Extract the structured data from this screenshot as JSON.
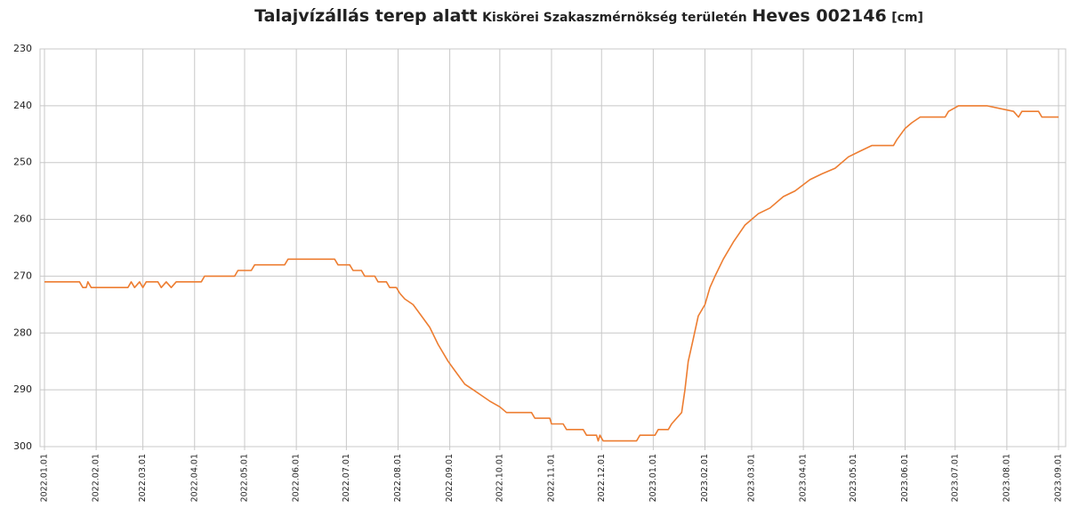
{
  "chart_data": {
    "type": "line",
    "title": [
      "Talajvízállás terep alatt",
      "Kiskörei Szakaszmérnökség területén",
      "Heves 002146",
      "[cm]"
    ],
    "x": [
      "2022.01.01",
      "2022.01.22",
      "2022.01.24",
      "2022.01.26",
      "2022.01.27",
      "2022.01.29",
      "2022.02.20",
      "2022.02.22",
      "2022.02.24",
      "2022.02.27",
      "2022.03.01",
      "2022.03.03",
      "2022.03.10",
      "2022.03.12",
      "2022.03.15",
      "2022.03.18",
      "2022.03.21",
      "2022.04.05",
      "2022.04.07",
      "2022.04.25",
      "2022.04.27",
      "2022.05.05",
      "2022.05.07",
      "2022.05.25",
      "2022.05.27",
      "2022.06.24",
      "2022.06.26",
      "2022.07.03",
      "2022.07.05",
      "2022.07.10",
      "2022.07.12",
      "2022.07.18",
      "2022.07.20",
      "2022.07.25",
      "2022.07.27",
      "2022.07.31",
      "2022.08.02",
      "2022.08.05",
      "2022.08.10",
      "2022.08.15",
      "2022.08.20",
      "2022.08.25",
      "2022.08.31",
      "2022.09.05",
      "2022.09.10",
      "2022.09.15",
      "2022.09.20",
      "2022.09.25",
      "2022.10.01",
      "2022.10.05",
      "2022.10.20",
      "2022.10.22",
      "2022.10.31",
      "2022.11.01",
      "2022.11.08",
      "2022.11.10",
      "2022.11.20",
      "2022.11.22",
      "2022.11.28",
      "2022.11.29",
      "2022.11.30",
      "2022.12.02",
      "2022.12.22",
      "2022.12.24",
      "2023.01.02",
      "2023.01.04",
      "2023.01.10",
      "2023.01.12",
      "2023.01.15",
      "2023.01.18",
      "2023.01.20",
      "2023.01.22",
      "2023.01.25",
      "2023.01.28",
      "2023.02.01",
      "2023.02.04",
      "2023.02.07",
      "2023.02.12",
      "2023.02.18",
      "2023.02.25",
      "2023.03.05",
      "2023.03.12",
      "2023.03.20",
      "2023.03.27",
      "2023.04.05",
      "2023.04.12",
      "2023.04.20",
      "2023.04.28",
      "2023.05.05",
      "2023.05.12",
      "2023.05.25",
      "2023.05.27",
      "2023.06.01",
      "2023.06.05",
      "2023.06.10",
      "2023.06.25",
      "2023.06.27",
      "2023.07.03",
      "2023.07.20",
      "2023.08.05",
      "2023.08.08",
      "2023.08.10",
      "2023.08.20",
      "2023.08.22",
      "2023.09.01"
    ],
    "series": [
      {
        "name": "Heves 002146",
        "color": "#ed7d31",
        "values": [
          271,
          271,
          272,
          272,
          271,
          272,
          272,
          271,
          272,
          271,
          272,
          271,
          271,
          272,
          271,
          272,
          271,
          271,
          270,
          270,
          269,
          269,
          268,
          268,
          267,
          267,
          268,
          268,
          269,
          269,
          270,
          270,
          271,
          271,
          272,
          272,
          273,
          274,
          275,
          277,
          279,
          282,
          285,
          287,
          289,
          290,
          291,
          292,
          293,
          294,
          294,
          295,
          295,
          296,
          296,
          297,
          297,
          298,
          298,
          299,
          298,
          299,
          299,
          298,
          298,
          297,
          297,
          296,
          295,
          294,
          290,
          285,
          281,
          277,
          275,
          272,
          270,
          267,
          264,
          261,
          259,
          258,
          256,
          255,
          253,
          252,
          251,
          249,
          248,
          247,
          247,
          246,
          244,
          243,
          242,
          242,
          241,
          240,
          240,
          241,
          242,
          241,
          241,
          242,
          242
        ]
      }
    ],
    "ylim": [
      230,
      300
    ],
    "yticks": [
      230,
      240,
      250,
      260,
      270,
      280,
      290,
      300
    ],
    "xlim": [
      "2022.01.01",
      "2023.09.01"
    ],
    "xticks": [
      "2022.01.01",
      "2022.02.01",
      "2022.03.01",
      "2022.04.01",
      "2022.05.01",
      "2022.06.01",
      "2022.07.01",
      "2022.08.01",
      "2022.09.01",
      "2022.10.01",
      "2022.11.01",
      "2022.12.01",
      "2023.01.01",
      "2023.02.01",
      "2023.03.01",
      "2023.04.01",
      "2023.05.01",
      "2023.06.01",
      "2023.07.01",
      "2023.08.01",
      "2023.09.01"
    ],
    "grid": true
  }
}
